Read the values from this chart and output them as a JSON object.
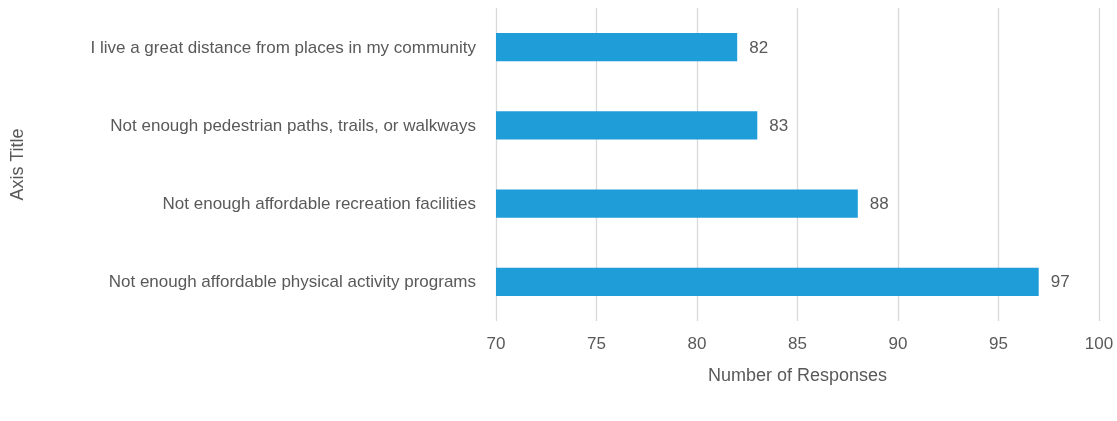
{
  "chart_data": {
    "type": "bar",
    "orientation": "horizontal",
    "categories": [
      "I live a great distance from places in my community",
      "Not enough pedestrian paths, trails, or walkways",
      "Not enough affordable recreation facilities",
      "Not enough affordable physical activity programs"
    ],
    "values": [
      82,
      83,
      88,
      97
    ],
    "color": "#1f9dd9",
    "xlim": [
      70,
      100
    ],
    "xticks": [
      70,
      75,
      80,
      85,
      90,
      95,
      100
    ],
    "xlabel": "Number of Responses",
    "ylabel": "Axis Title",
    "data_labels": true,
    "grid": "x"
  }
}
